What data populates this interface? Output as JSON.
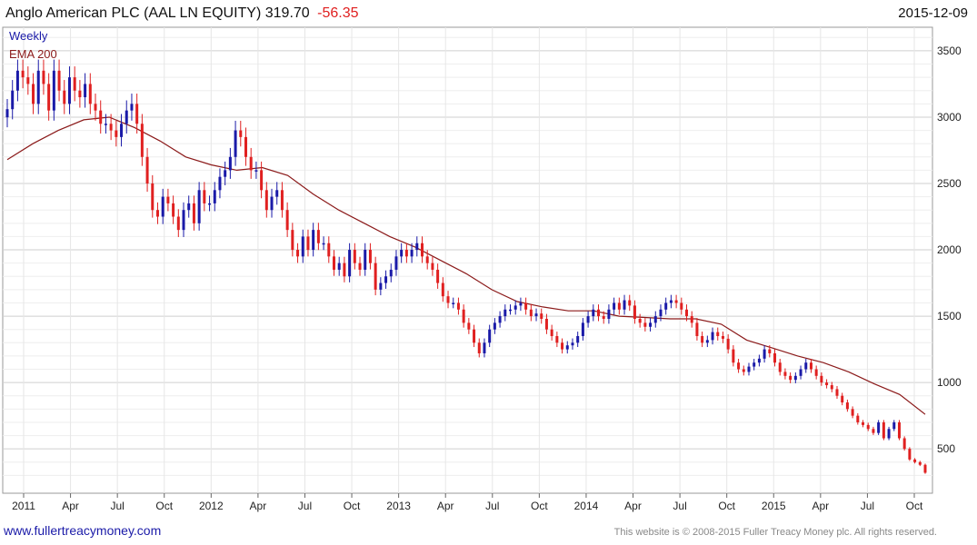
{
  "header": {
    "name": "Anglo American PLC (AAL LN EQUITY)",
    "last": "319.70",
    "change": "-56.35",
    "date": "2015-12-09"
  },
  "legend": {
    "weekly": "Weekly",
    "ema": "EMA 200"
  },
  "footer": {
    "site": "www.fullertreacymoney.com",
    "copyright": "This website is © 2008-2015 Fuller Treacy Money plc. All rights reserved."
  },
  "colors": {
    "up": "#1a1aa8",
    "down": "#e02020",
    "ema": "#8b1a1a",
    "grid": "#d8d8d8"
  },
  "chart_data": {
    "type": "candlestick",
    "frequency": "weekly",
    "y_ticks": [
      500,
      1000,
      1500,
      2000,
      2500,
      3000,
      3500
    ],
    "ylim": [
      200,
      3650
    ],
    "x_ticks": [
      "2011",
      "Apr",
      "Jul",
      "Oct",
      "2012",
      "Apr",
      "Jul",
      "Oct",
      "2013",
      "Apr",
      "Jul",
      "Oct",
      "2014",
      "Apr",
      "Jul",
      "Oct",
      "2015",
      "Apr",
      "Jul",
      "Oct"
    ],
    "series": [
      {
        "name": "Weekly",
        "values": [
          3060,
          3200,
          3350,
          3300,
          3250,
          3100,
          3350,
          3250,
          3050,
          3350,
          3200,
          3100,
          3300,
          3200,
          3150,
          3250,
          3100,
          3050,
          2950,
          2950,
          2900,
          2850,
          2950,
          3050,
          3100,
          2950,
          2700,
          2500,
          2300,
          2250,
          2400,
          2350,
          2250,
          2150,
          2300,
          2350,
          2200,
          2450,
          2350,
          2350,
          2450,
          2550,
          2600,
          2700,
          2900,
          2850,
          2700,
          2600,
          2600,
          2450,
          2300,
          2400,
          2450,
          2300,
          2150,
          2000,
          1950,
          2100,
          2000,
          2150,
          2050,
          2050,
          1950,
          1850,
          1900,
          1800,
          2000,
          1900,
          1850,
          2000,
          1900,
          1700,
          1750,
          1800,
          1850,
          1950,
          2000,
          1950,
          2000,
          2050,
          1950,
          1900,
          1850,
          1750,
          1650,
          1600,
          1600,
          1550,
          1450,
          1400,
          1300,
          1220,
          1300,
          1400,
          1450,
          1500,
          1550,
          1550,
          1580,
          1600,
          1550,
          1500,
          1520,
          1480,
          1400,
          1350,
          1300,
          1250,
          1280,
          1300,
          1350,
          1450,
          1500,
          1550,
          1500,
          1480,
          1550,
          1600,
          1550,
          1620,
          1580,
          1480,
          1450,
          1420,
          1450,
          1500,
          1550,
          1600,
          1620,
          1600,
          1550,
          1500,
          1450,
          1350,
          1300,
          1320,
          1380,
          1350,
          1330,
          1250,
          1150,
          1100,
          1080,
          1120,
          1150,
          1180,
          1250,
          1220,
          1150,
          1080,
          1050,
          1020,
          1050,
          1100,
          1150,
          1100,
          1050,
          1000,
          980,
          950,
          900,
          850,
          800,
          750,
          700,
          680,
          650,
          620,
          700,
          580,
          650,
          700,
          580,
          500,
          420,
          400,
          380,
          320
        ]
      },
      {
        "name": "EMA 200",
        "values": [
          2680,
          2800,
          2900,
          2980,
          3000,
          2920,
          2820,
          2700,
          2640,
          2600,
          2620,
          2560,
          2420,
          2300,
          2200,
          2100,
          2020,
          1920,
          1820,
          1700,
          1610,
          1570,
          1540,
          1540,
          1500,
          1490,
          1480,
          1480,
          1440,
          1320,
          1260,
          1200,
          1150,
          1080,
          990,
          910,
          760
        ]
      }
    ]
  }
}
